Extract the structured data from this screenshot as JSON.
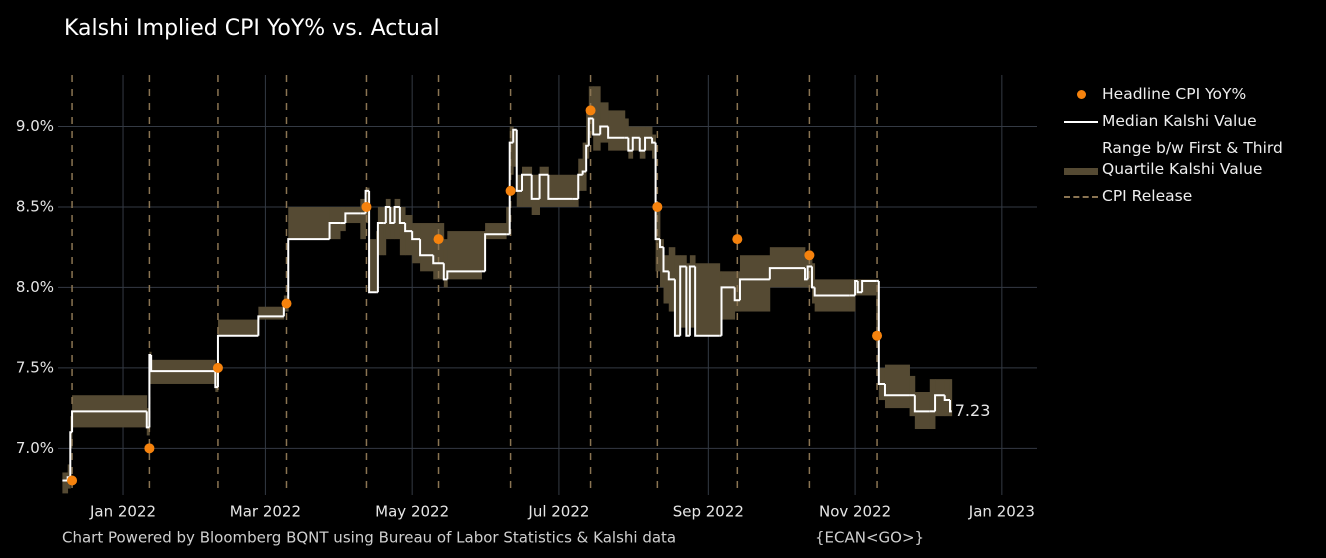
{
  "chart_data": {
    "type": "line",
    "title": "Kalshi Implied CPI YoY% vs. Actual",
    "source": "Chart Powered by Bloomberg BQNT using Bureau of Labor Statistics & Kalshi data",
    "footer_code": "{ECAN<GO>}",
    "xlim": [
      2021.926,
      2023.04
    ],
    "xticks": [
      {
        "value": 2022.0,
        "label": "Jan 2022"
      },
      {
        "value": 2022.162,
        "label": "Mar 2022"
      },
      {
        "value": 2022.329,
        "label": "May 2022"
      },
      {
        "value": 2022.496,
        "label": "Jul 2022"
      },
      {
        "value": 2022.666,
        "label": "Sep 2022"
      },
      {
        "value": 2022.833,
        "label": "Nov 2022"
      },
      {
        "value": 2023.0,
        "label": "Jan 2023"
      }
    ],
    "ylim": [
      6.71,
      9.32
    ],
    "yticks": [
      {
        "value": 7.0,
        "label": "7.0%"
      },
      {
        "value": 7.5,
        "label": "7.5%"
      },
      {
        "value": 8.0,
        "label": "8.0%"
      },
      {
        "value": 8.5,
        "label": "8.5%"
      },
      {
        "value": 9.0,
        "label": "9.0%"
      }
    ],
    "grid": true,
    "x": [
      2021.931,
      2021.937,
      2021.94,
      2021.942,
      2022.027,
      2022.03,
      2022.032,
      2022.105,
      2022.108,
      2022.154,
      2022.183,
      2022.188,
      2022.235,
      2022.247,
      2022.253,
      2022.27,
      2022.276,
      2022.28,
      2022.288,
      2022.29,
      2022.296,
      2022.299,
      2022.304,
      2022.309,
      2022.315,
      2022.321,
      2022.329,
      2022.338,
      2022.353,
      2022.365,
      2022.369,
      2022.408,
      2022.412,
      2022.436,
      2022.44,
      2022.444,
      2022.448,
      2022.454,
      2022.465,
      2022.474,
      2022.484,
      2022.511,
      2022.518,
      2022.523,
      2022.527,
      2022.53,
      2022.535,
      2022.543,
      2022.552,
      2022.571,
      2022.575,
      2022.58,
      2022.588,
      2022.594,
      2022.602,
      2022.606,
      2022.611,
      2022.615,
      2022.621,
      2022.628,
      2022.634,
      2022.641,
      2022.645,
      2022.651,
      2022.679,
      2022.681,
      2022.696,
      2022.702,
      2022.736,
      2022.776,
      2022.779,
      2022.784,
      2022.787,
      2022.827,
      2022.833,
      2022.836,
      2022.841,
      2022.857,
      2022.86,
      2022.867,
      2022.895,
      2022.901,
      2022.918,
      2022.924,
      2022.935,
      2022.941
    ],
    "series": [
      {
        "name": "Range b/w First & Third Quartile Kalshi Value",
        "kind": "band",
        "color": "#554a33",
        "lower": [
          6.72,
          6.75,
          7.0,
          7.13,
          7.08,
          7.4,
          7.4,
          7.35,
          7.7,
          7.8,
          7.85,
          8.3,
          8.3,
          8.35,
          8.4,
          8.3,
          8.4,
          7.97,
          7.97,
          8.2,
          8.2,
          8.3,
          8.3,
          8.3,
          8.2,
          8.2,
          8.15,
          8.1,
          8.05,
          8.0,
          8.05,
          8.1,
          8.3,
          8.33,
          8.7,
          8.75,
          8.5,
          8.5,
          8.45,
          8.5,
          8.5,
          8.5,
          8.6,
          8.6,
          8.8,
          8.95,
          8.85,
          8.9,
          8.85,
          8.85,
          8.8,
          8.85,
          8.8,
          8.85,
          8.8,
          8.1,
          8.0,
          7.9,
          7.85,
          7.7,
          7.75,
          7.7,
          7.75,
          7.7,
          7.7,
          7.8,
          7.85,
          7.85,
          8.0,
          8.0,
          8.0,
          7.9,
          7.85,
          7.85,
          7.95,
          7.95,
          7.95,
          7.7,
          7.3,
          7.25,
          7.2,
          7.12,
          7.12,
          7.2,
          7.2,
          7.2
        ],
        "upper": [
          6.85,
          6.9,
          7.2,
          7.33,
          7.25,
          7.6,
          7.55,
          7.5,
          7.8,
          7.88,
          7.95,
          8.5,
          8.5,
          8.5,
          8.5,
          8.55,
          8.62,
          8.3,
          8.35,
          8.5,
          8.5,
          8.55,
          8.5,
          8.55,
          8.5,
          8.45,
          8.4,
          8.4,
          8.4,
          8.3,
          8.35,
          8.35,
          8.4,
          8.5,
          9.0,
          8.98,
          8.7,
          8.75,
          8.7,
          8.75,
          8.7,
          8.7,
          8.8,
          8.9,
          9.1,
          9.25,
          9.25,
          9.15,
          9.1,
          9.05,
          9.0,
          9.0,
          9.0,
          9.0,
          8.95,
          8.5,
          8.3,
          8.2,
          8.25,
          8.2,
          8.2,
          8.15,
          8.2,
          8.15,
          8.1,
          8.1,
          8.1,
          8.2,
          8.25,
          8.2,
          8.2,
          8.15,
          8.05,
          8.05,
          8.05,
          8.05,
          8.05,
          8.05,
          7.5,
          7.52,
          7.45,
          7.35,
          7.43,
          7.43,
          7.43,
          7.43
        ]
      },
      {
        "name": "Median Kalshi Value",
        "kind": "line",
        "color": "#ffffff",
        "values": [
          6.8,
          6.82,
          7.1,
          7.23,
          7.13,
          7.58,
          7.48,
          7.38,
          7.7,
          7.82,
          7.9,
          8.3,
          8.4,
          8.4,
          8.46,
          8.46,
          8.6,
          7.97,
          7.97,
          8.4,
          8.4,
          8.5,
          8.4,
          8.5,
          8.4,
          8.35,
          8.3,
          8.2,
          8.15,
          8.05,
          8.1,
          8.1,
          8.33,
          8.33,
          8.9,
          8.98,
          8.6,
          8.7,
          8.55,
          8.7,
          8.55,
          8.55,
          8.7,
          8.72,
          8.88,
          9.05,
          8.95,
          9.0,
          8.93,
          8.93,
          8.85,
          8.93,
          8.85,
          8.93,
          8.9,
          8.3,
          8.25,
          8.1,
          8.05,
          7.7,
          8.13,
          7.7,
          8.13,
          7.7,
          7.7,
          8.0,
          7.92,
          8.05,
          8.12,
          8.05,
          8.13,
          8.0,
          7.95,
          7.95,
          8.04,
          7.97,
          8.04,
          8.04,
          7.4,
          7.33,
          7.33,
          7.23,
          7.23,
          7.33,
          7.3,
          7.23
        ]
      },
      {
        "name": "Headline CPI YoY%",
        "kind": "scatter",
        "color": "#f5820d",
        "x": [
          2021.942,
          2022.03,
          2022.108,
          2022.186,
          2022.277,
          2022.359,
          2022.441,
          2022.532,
          2022.608,
          2022.699,
          2022.781,
          2022.858
        ],
        "values": [
          6.8,
          7.0,
          7.5,
          7.9,
          8.5,
          8.3,
          8.6,
          9.1,
          8.5,
          8.3,
          8.2,
          7.7
        ]
      },
      {
        "name": "CPI Release",
        "kind": "vline",
        "color": "#8a7452",
        "x": [
          2021.942,
          2022.03,
          2022.108,
          2022.186,
          2022.277,
          2022.359,
          2022.441,
          2022.532,
          2022.608,
          2022.699,
          2022.781,
          2022.858
        ]
      }
    ]
  }
}
